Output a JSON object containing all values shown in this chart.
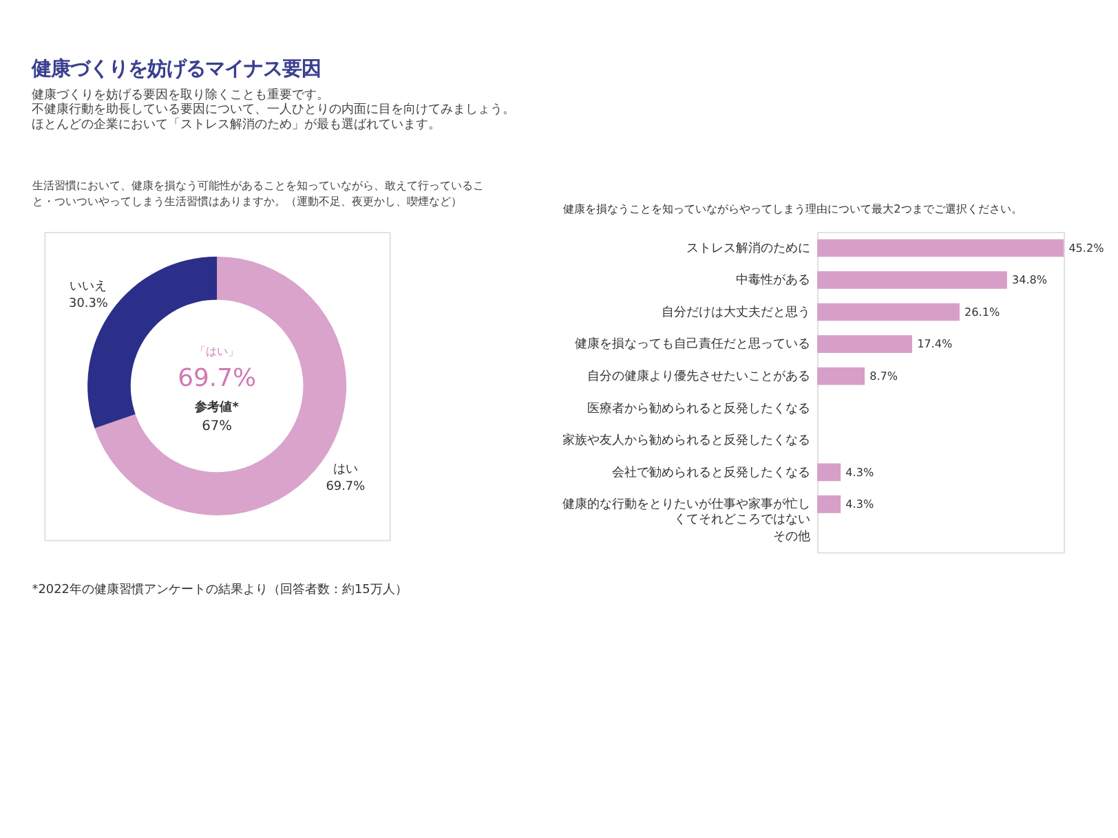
{
  "chart_data": [
    {
      "type": "donut",
      "title": "健康づくりを妨げるマイナス要因",
      "subtitle": "健康づくりを妨げる要因を取り除くことも重要です。不健康行動を助長している要因について、一人ひとりの内面に目を向けてみましょう。ほとんどの企業において「ストレス解消のため」が最も選ばれています。",
      "categories": [
        "はい",
        "いいえ"
      ],
      "values": [
        69.7,
        30.3
      ],
      "colors": [
        "#d9a3cb",
        "#2b2f8a"
      ],
      "value_labels": [
        "69.7%",
        "30.3%"
      ],
      "annotations": [
        "生活習慣において、健康を損なう可能性があることを知っていながら、敢えて行っていること・ついついやってしまう生活習慣はありますか。（運動不足、夜更かし、喫煙など）",
        "「はい」",
        "69.7%",
        "参考値*",
        "67%",
        "*2022年の健康習慣アンケートの結果より（回答者数：約15万人）"
      ]
    },
    {
      "type": "bar",
      "orientation": "horizontal",
      "title": "健康を損なうことを知っていながらやってしまう理由について最大2つまでご選択ください。",
      "tick_labels": "y",
      "color": "#d79fc8",
      "categories": [
        "ストレス解消のために",
        "中毒性がある",
        "自分だけは大丈夫だと思う",
        "健康を損なっても自己責任だと思っている",
        "自分の健康より優先させたいことがある",
        "医療者から勧められると反発したくなる",
        "家族や友人から勧められると反発したくなる",
        "会社で勧められると反発したくなる",
        "健康的な行動をとりたいが仕事や家事が忙しくてそれどころではない",
        "その他"
      ],
      "values": [
        45.2,
        34.8,
        26.1,
        17.4,
        8.7,
        0,
        0,
        4.3,
        4.3,
        0
      ],
      "value_labels": [
        "45.2%",
        "34.8%",
        "26.1%",
        "17.4%",
        "8.7%",
        null,
        null,
        "4.3%",
        "4.3%",
        null
      ]
    }
  ]
}
